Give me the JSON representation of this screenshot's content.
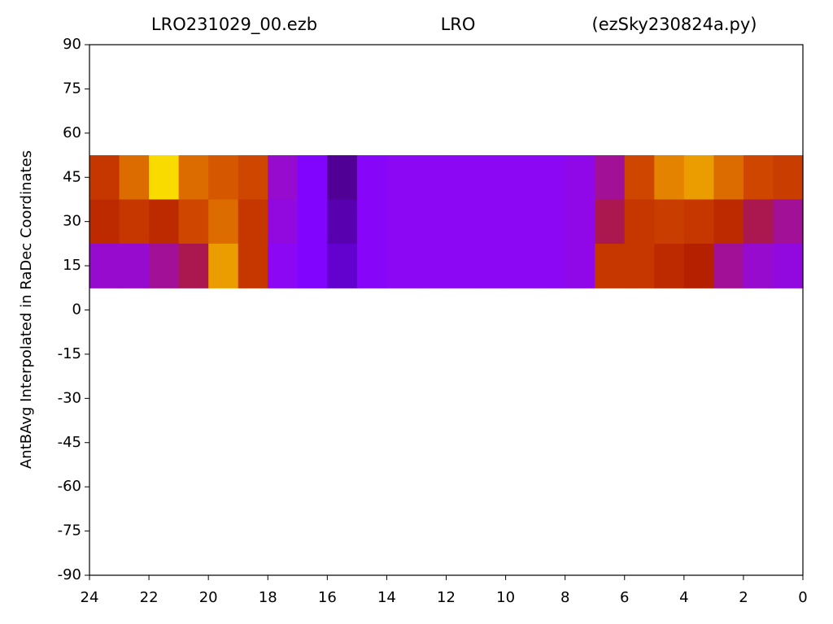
{
  "chart_data": {
    "type": "heatmap",
    "title": [
      "LRO231029_00.ezb",
      "LRO",
      "(ezSky230824a.py)"
    ],
    "ylabel": "AntBAvg Interpolated in RaDec Coordinates",
    "colormap": "gnuplot",
    "x": [
      23.5,
      22.5,
      21.5,
      20.5,
      19.5,
      18.5,
      17.5,
      16.5,
      15.5,
      14.5,
      13.5,
      12.5,
      11.5,
      10.5,
      9.5,
      8.5,
      7.5,
      6.5,
      5.5,
      4.5,
      3.5,
      2.5,
      1.5,
      0.5
    ],
    "y": [
      45,
      30,
      15
    ],
    "z": [
      [
        0.6,
        0.75,
        0.95,
        0.75,
        0.7,
        0.65,
        0.35,
        0.25,
        0.1,
        0.28,
        0.3,
        0.3,
        0.3,
        0.3,
        0.3,
        0.3,
        0.32,
        0.4,
        0.65,
        0.8,
        0.85,
        0.75,
        0.65,
        0.62
      ],
      [
        0.55,
        0.6,
        0.55,
        0.65,
        0.75,
        0.6,
        0.33,
        0.25,
        0.12,
        0.28,
        0.3,
        0.3,
        0.3,
        0.3,
        0.3,
        0.3,
        0.32,
        0.45,
        0.6,
        0.62,
        0.6,
        0.55,
        0.45,
        0.4
      ],
      [
        0.35,
        0.35,
        0.4,
        0.45,
        0.85,
        0.6,
        0.3,
        0.25,
        0.15,
        0.28,
        0.3,
        0.3,
        0.3,
        0.3,
        0.3,
        0.3,
        0.32,
        0.6,
        0.6,
        0.55,
        0.5,
        0.4,
        0.35,
        0.33
      ]
    ],
    "xlim": [
      24,
      0
    ],
    "ylim": [
      -90,
      90
    ],
    "xticks": [
      24,
      22,
      20,
      18,
      16,
      14,
      12,
      10,
      8,
      6,
      4,
      2,
      0
    ],
    "yticks": [
      90,
      75,
      60,
      45,
      30,
      15,
      0,
      -15,
      -30,
      -45,
      -60,
      -75,
      -90
    ]
  }
}
